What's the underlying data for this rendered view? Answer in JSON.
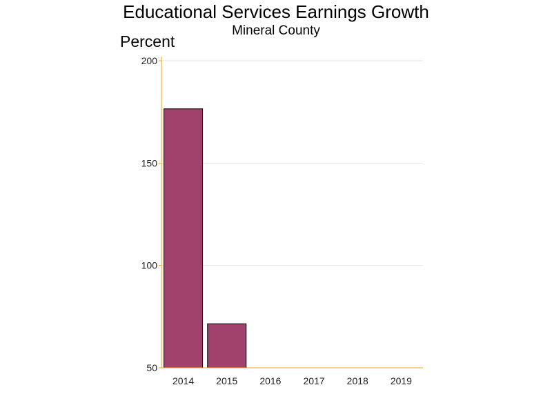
{
  "chart_data": {
    "type": "bar",
    "title": "Educational Services Earnings Growth",
    "subtitle": "Mineral County",
    "ylabel": "Percent",
    "xlabel": "",
    "categories": [
      "2014",
      "2015",
      "2016",
      "2017",
      "2018",
      "2019"
    ],
    "values": [
      176.5,
      71.5,
      null,
      null,
      null,
      null
    ],
    "ylim": [
      50,
      200
    ],
    "yticks": [
      50,
      100,
      150,
      200
    ],
    "grid": true,
    "legend": "none",
    "colors": {
      "bar_fill": "#a0426b",
      "bar_stroke": "#000000",
      "axis": "#e8a317",
      "grid": "#e4e4e4"
    }
  }
}
